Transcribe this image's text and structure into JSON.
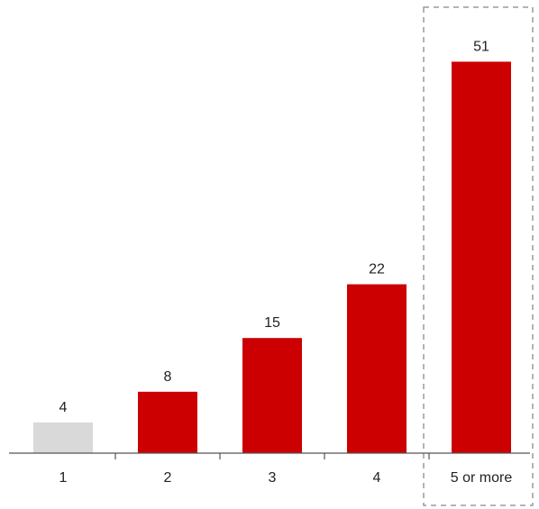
{
  "chart_data": {
    "type": "bar",
    "categories": [
      "1",
      "2",
      "3",
      "4",
      "5 or more"
    ],
    "values": [
      4,
      8,
      15,
      22,
      51
    ],
    "data_labels": [
      "4",
      "8",
      "15",
      "22",
      "51"
    ],
    "bar_colors": [
      "#d9d9d9",
      "#cc0000",
      "#cc0000",
      "#cc0000",
      "#cc0000"
    ],
    "highlighted_category": "5 or more",
    "highlight_style": "dashed box",
    "ylim": [
      0,
      55
    ],
    "y_axis_visible": false,
    "grid": false,
    "legend": "none"
  },
  "colors": {
    "accent": "#cc0000",
    "muted": "#d9d9d9",
    "axis": "#555555",
    "highlight_border": "#9a9a9a"
  }
}
